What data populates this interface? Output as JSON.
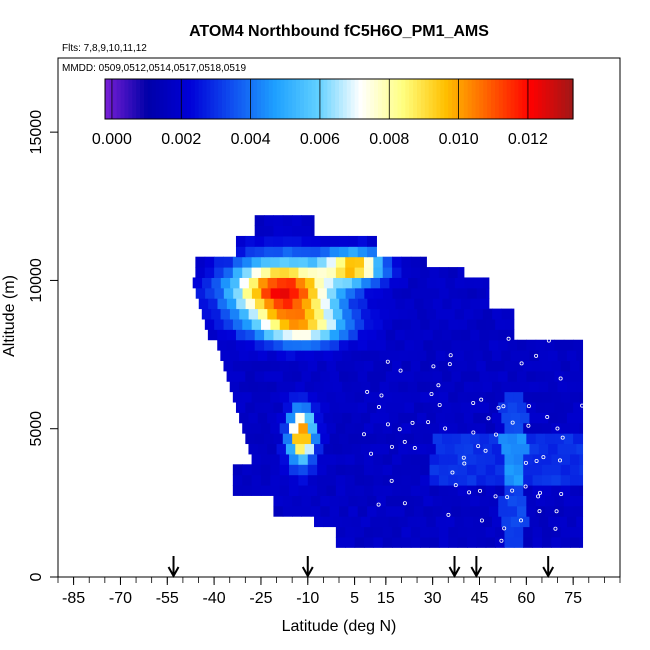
{
  "chart_data": {
    "type": "heatmap",
    "title": "ATOM4 Northbound fC5H6O_PM1_AMS",
    "flights_label": "Flts: 7,8,9,10,11,12",
    "dates_label": "MMDD: 0509,0512,0514,0517,0518,0519",
    "xlabel": "Latitude (deg N)",
    "ylabel": "Altitude (m)",
    "xlim": [
      -90,
      90
    ],
    "ylim": [
      0,
      17500
    ],
    "x_ticks": [
      -85,
      -70,
      -55,
      -40,
      -25,
      -10,
      5,
      15,
      30,
      45,
      60,
      75
    ],
    "x_tick_labels": [
      "-85",
      "-70",
      "-55",
      "-40",
      "-25",
      "-10",
      "5",
      "15",
      "30",
      "45",
      "60",
      "75"
    ],
    "y_ticks": [
      0,
      5000,
      10000,
      15000
    ],
    "y_tick_labels": [
      "0",
      "5000",
      "10000",
      "15000"
    ],
    "colorbar": {
      "ticks": [
        0.0,
        0.002,
        0.004,
        0.006,
        0.008,
        0.01,
        0.012
      ],
      "tick_labels": [
        "0.000",
        "0.002",
        "0.004",
        "0.006",
        "0.008",
        "0.010",
        "0.012"
      ],
      "range": [
        -0.0002,
        0.0133
      ],
      "colors": [
        "#7a1fd6",
        "#0000a8",
        "#0000d8",
        "#1050f0",
        "#1ea0ff",
        "#60d0ff",
        "#ffffff",
        "#ffff80",
        "#ffc000",
        "#ff6000",
        "#ff0000",
        "#a01818"
      ]
    },
    "arrows_latitude": [
      -53,
      -10,
      37,
      44,
      67
    ],
    "grid": false,
    "legend": "top-colorbar"
  }
}
